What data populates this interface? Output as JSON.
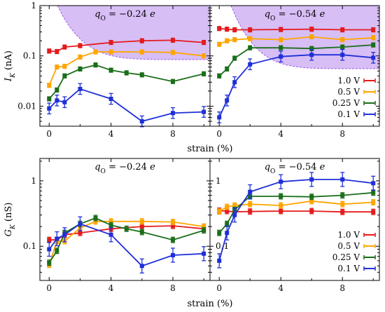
{
  "chart_data": [
    {
      "type": "line",
      "panel": "top-left",
      "title": "q_O = −0.24 e",
      "ylabel": "I_K (nA)",
      "xlabel": "strain (%)",
      "yscale": "log",
      "ylim": [
        0.004,
        1
      ],
      "xlim": [
        -0.6,
        10.4
      ],
      "xticks": [
        0,
        4,
        8
      ],
      "yticks": [
        0.01,
        0.1,
        1
      ],
      "ytick_labels": [
        "0.01",
        "0.1",
        "1"
      ],
      "shaded_region": "top-right (purple, dashed boundary)",
      "series": [
        {
          "name": "1.0 V",
          "color": "#e41a1c",
          "x": [
            0,
            0.5,
            1,
            2,
            4,
            6,
            8,
            10
          ],
          "y": [
            0.125,
            0.122,
            0.15,
            0.16,
            0.185,
            0.2,
            0.205,
            0.185
          ]
        },
        {
          "name": "0.5 V",
          "color": "#ffa500",
          "x": [
            0,
            0.5,
            1,
            2,
            3,
            4,
            6,
            8,
            10
          ],
          "y": [
            0.026,
            0.06,
            0.062,
            0.095,
            0.12,
            0.12,
            0.12,
            0.117,
            0.1
          ]
        },
        {
          "name": "0.25 V",
          "color": "#1a6e1a",
          "x": [
            0,
            0.5,
            1,
            2,
            3,
            4,
            5,
            6,
            8,
            10
          ],
          "y": [
            0.014,
            0.021,
            0.04,
            0.055,
            0.066,
            0.052,
            0.046,
            0.042,
            0.031,
            0.044
          ]
        },
        {
          "name": "0.1 V",
          "color": "#1f2fd8",
          "x": [
            0,
            0.5,
            1,
            2,
            4,
            6,
            8,
            10
          ],
          "y": [
            0.009,
            0.013,
            0.012,
            0.022,
            0.014,
            0.005,
            0.0073,
            0.0077
          ]
        }
      ]
    },
    {
      "type": "line",
      "panel": "top-right",
      "title": "q_O = −0.54 e",
      "xlabel": "strain (%)",
      "yscale": "log",
      "ylim": [
        0.004,
        1
      ],
      "xlim": [
        -0.6,
        10.4
      ],
      "xticks": [
        0,
        4,
        8
      ],
      "shaded_region": "top-right (purple, dashed boundary)",
      "series": [
        {
          "name": "1.0 V",
          "color": "#e41a1c",
          "x": [
            0,
            0.5,
            1,
            2,
            4,
            6,
            8,
            10
          ],
          "y": [
            0.35,
            0.34,
            0.33,
            0.33,
            0.335,
            0.34,
            0.33,
            0.33
          ]
        },
        {
          "name": "0.5 V",
          "color": "#ffa500",
          "x": [
            0,
            0.5,
            1,
            2,
            4,
            6,
            8,
            10
          ],
          "y": [
            0.17,
            0.2,
            0.21,
            0.22,
            0.21,
            0.24,
            0.21,
            0.23
          ]
        },
        {
          "name": "0.25 V",
          "color": "#1a6e1a",
          "x": [
            0,
            0.5,
            1,
            2,
            4,
            6,
            8,
            10
          ],
          "y": [
            0.04,
            0.055,
            0.09,
            0.145,
            0.145,
            0.14,
            0.15,
            0.165
          ]
        },
        {
          "name": "0.1 V",
          "color": "#1f2fd8",
          "x": [
            0,
            0.5,
            1,
            2,
            4,
            6,
            8,
            10
          ],
          "y": [
            0.006,
            0.013,
            0.03,
            0.068,
            0.097,
            0.105,
            0.105,
            0.092
          ]
        }
      ]
    },
    {
      "type": "line",
      "panel": "bottom-left",
      "title": "q_O = −0.24 e",
      "ylabel": "G_K (nS)",
      "xlabel": "strain (%)",
      "yscale": "log",
      "ylim": [
        0.03,
        2.2
      ],
      "xlim": [
        -0.6,
        10.4
      ],
      "xticks": [
        0,
        4,
        8
      ],
      "yticks": [
        0.1,
        1
      ],
      "ytick_labels": [
        "0.1",
        "1"
      ],
      "series": [
        {
          "name": "1.0 V",
          "color": "#e41a1c",
          "x": [
            0,
            0.5,
            1,
            2,
            4,
            6,
            8,
            10
          ],
          "y": [
            0.125,
            0.125,
            0.15,
            0.16,
            0.185,
            0.2,
            0.205,
            0.185
          ]
        },
        {
          "name": "0.5 V",
          "color": "#ffa500",
          "x": [
            0,
            0.5,
            1,
            2,
            3,
            4,
            6,
            8,
            10
          ],
          "y": [
            0.052,
            0.12,
            0.12,
            0.19,
            0.24,
            0.24,
            0.24,
            0.235,
            0.2
          ]
        },
        {
          "name": "0.25 V",
          "color": "#1a6e1a",
          "x": [
            0,
            0.5,
            1,
            2,
            3,
            4,
            5,
            6,
            8,
            10
          ],
          "y": [
            0.056,
            0.085,
            0.16,
            0.22,
            0.27,
            0.21,
            0.185,
            0.165,
            0.125,
            0.175
          ]
        },
        {
          "name": "0.1 V",
          "color": "#1f2fd8",
          "x": [
            0,
            0.5,
            1,
            2,
            4,
            6,
            8,
            10
          ],
          "y": [
            0.09,
            0.13,
            0.15,
            0.22,
            0.15,
            0.05,
            0.073,
            0.077
          ]
        }
      ]
    },
    {
      "type": "line",
      "panel": "bottom-right",
      "title": "q_O = −0.54 e",
      "xlabel": "strain (%)",
      "yscale": "log",
      "ylim": [
        0.03,
        2.2
      ],
      "xlim": [
        -0.6,
        10.4
      ],
      "xticks": [
        0,
        4,
        8
      ],
      "yticks": [
        0.1,
        1
      ],
      "ytick_labels": [
        "0.1",
        "1"
      ],
      "series": [
        {
          "name": "1.0 V",
          "color": "#e41a1c",
          "x": [
            0,
            0.5,
            1,
            2,
            4,
            6,
            8,
            10
          ],
          "y": [
            0.35,
            0.345,
            0.335,
            0.34,
            0.345,
            0.345,
            0.335,
            0.335
          ]
        },
        {
          "name": "0.5 V",
          "color": "#ffa500",
          "x": [
            0,
            0.5,
            1,
            2,
            4,
            6,
            8,
            10
          ],
          "y": [
            0.34,
            0.4,
            0.42,
            0.44,
            0.42,
            0.49,
            0.44,
            0.47
          ]
        },
        {
          "name": "0.25 V",
          "color": "#1a6e1a",
          "x": [
            0,
            0.5,
            1,
            2,
            4,
            6,
            8,
            10
          ],
          "y": [
            0.16,
            0.22,
            0.36,
            0.58,
            0.58,
            0.57,
            0.6,
            0.66
          ]
        },
        {
          "name": "0.1 V",
          "color": "#1f2fd8",
          "x": [
            0,
            0.5,
            1,
            2,
            4,
            6,
            8,
            10
          ],
          "y": [
            0.06,
            0.16,
            0.3,
            0.68,
            0.97,
            1.05,
            1.05,
            0.92
          ]
        }
      ]
    }
  ],
  "panel_titles": {
    "top_left": "q_O = −0.24 e",
    "top_right": "q_O = −0.54 e",
    "bottom_left": "q_O = −0.24 e",
    "bottom_right": "q_O = −0.54 e"
  },
  "labels": {
    "top_ylabel": "I_K (nA)",
    "bottom_ylabel": "G_K (nS)",
    "xlabel": "strain (%)"
  },
  "legend": {
    "placement": "lower-right of right panels",
    "entries": [
      "1.0 V",
      "0.5 V",
      "0.25 V",
      "0.1 V"
    ]
  },
  "shade_color": "#c9a8f2"
}
